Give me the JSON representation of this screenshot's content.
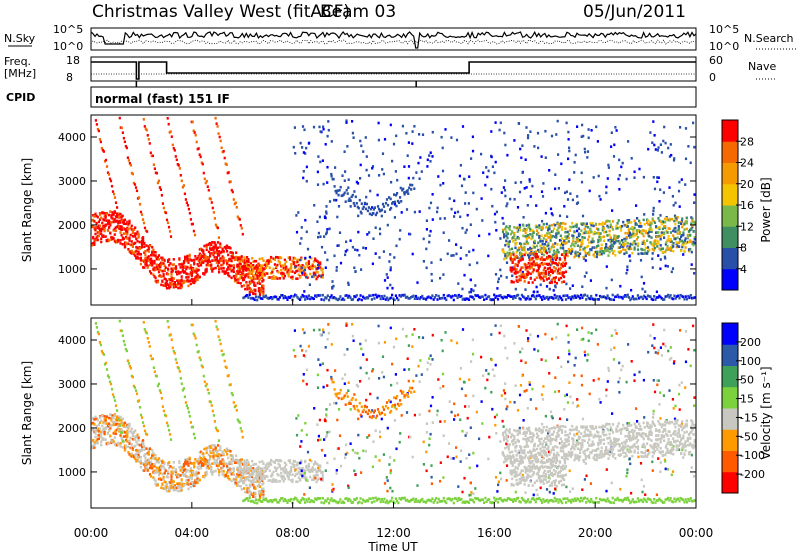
{
  "header": {
    "title": "Christmas Valley West (fitACF)",
    "beam": "Beam 03",
    "date": "05/Jun/2011"
  },
  "sky_panel": {
    "left_label": "N.Sky",
    "right_label": "N.Search",
    "left_ticks": [
      "10^5",
      "10^0"
    ],
    "right_ticks": [
      "10^5",
      "10^0"
    ]
  },
  "freq_panel": {
    "left_label_1": "Freq.",
    "left_label_2": "[MHz]",
    "left_ticks": [
      "18",
      "8"
    ],
    "right_ticks": [
      "60",
      "0"
    ],
    "right_label": "Nave"
  },
  "cpid_panel": {
    "label": "CPID",
    "mode": "normal (fast) 151 IF"
  },
  "colors": {
    "power": [
      "#0000ff",
      "#2850a8",
      "#3f8f63",
      "#7ab84a",
      "#f5c400",
      "#f59a00",
      "#f56a00",
      "#ff0000"
    ],
    "velocity": [
      "#ff0000",
      "#ff5a00",
      "#ff9a00",
      "#c8c8c0",
      "#c8c8c0",
      "#7bd23c",
      "#3fa05a",
      "#2d5aa8",
      "#0000ff"
    ]
  },
  "chart_data": [
    {
      "type": "heatmap",
      "name": "power",
      "ylabel": "Slant Range [km]",
      "yticks": [
        1000,
        2000,
        3000,
        4000
      ],
      "ylim": [
        180,
        4500
      ],
      "xlim_hours": [
        0,
        24
      ],
      "colorbar_label": "Power [dB]",
      "colorbar_ticks": [
        "4",
        "8",
        "12",
        "16",
        "20",
        "24",
        "28"
      ],
      "clim": [
        0,
        32
      ]
    },
    {
      "type": "heatmap",
      "name": "velocity",
      "ylabel": "Slant Range [km]",
      "yticks": [
        1000,
        2000,
        3000,
        4000
      ],
      "ylim": [
        180,
        4500
      ],
      "xlim_hours": [
        0,
        24
      ],
      "xticks": [
        "00:00",
        "04:00",
        "08:00",
        "12:00",
        "16:00",
        "20:00",
        "00:00"
      ],
      "xlabel": "Time UT",
      "colorbar_label": "Velocity [m s⁻¹]",
      "colorbar_ticks": [
        "-200",
        "-100",
        "-50",
        "-15",
        "15",
        "50",
        "100",
        "200"
      ]
    }
  ]
}
